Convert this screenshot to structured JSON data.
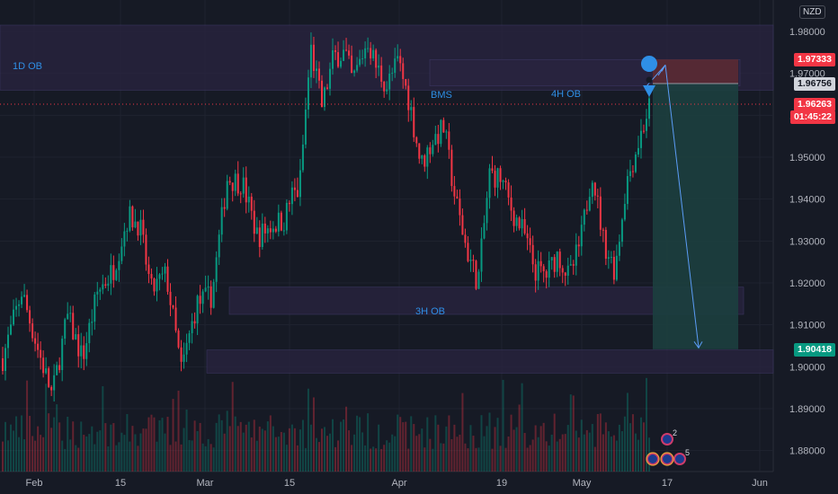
{
  "chart_data": {
    "type": "candlestick",
    "instrument_currency": "NZD",
    "y_range": [
      1.875,
      1.9875
    ],
    "y_ticks": [
      "1.98000",
      "1.97000",
      "1.96000",
      "1.95000",
      "1.94000",
      "1.93000",
      "1.92000",
      "1.91000",
      "1.90000",
      "1.89000",
      "1.88000"
    ],
    "x_ticks": [
      "Feb",
      "15",
      "Mar",
      "15",
      "Apr",
      "19",
      "May",
      "17",
      "Jun"
    ],
    "price_badges": {
      "target_top": {
        "text": "1.97333",
        "bg": "#f23645",
        "color": "#ffffff"
      },
      "entry": {
        "text": "1.96756",
        "bg": "#d1d4dc",
        "color": "#131722"
      },
      "current": {
        "text": "1.96263",
        "bg": "#f23645",
        "color": "#ffffff"
      },
      "countdown": {
        "text": "01:45:22",
        "bg": "#f23645",
        "color": "#ffffff"
      },
      "take_profit": {
        "text": "1.90418",
        "bg": "#089981",
        "color": "#ffffff"
      }
    },
    "zones": [
      {
        "label": "1D OB",
        "top": 1.9815,
        "bottom": 1.966
      },
      {
        "label": "4H OB",
        "top": 1.9733,
        "bottom": 1.967
      },
      {
        "label": "3H OB",
        "top": 1.919,
        "bottom": 1.9125
      },
      {
        "label": "",
        "top": 1.904,
        "bottom": 1.8985
      }
    ],
    "annotations": {
      "bms": "BMS"
    },
    "position": {
      "type": "short",
      "stop": 1.97333,
      "entry": 1.96756,
      "target": 1.90418
    },
    "current_price": 1.96263,
    "colors": {
      "up": "#089981",
      "down": "#f23645",
      "background": "#161a25",
      "zone": "#2a2440",
      "short_risk": "#5a2a33",
      "short_reward": "#1c3f3f",
      "accent": "#2f8fe6"
    },
    "event_markers": [
      "2",
      "5"
    ],
    "price_path": [
      [
        0,
        1.902
      ],
      [
        0.025,
        1.918
      ],
      [
        0.045,
        1.905
      ],
      [
        0.065,
        1.893
      ],
      [
        0.085,
        1.912
      ],
      [
        0.105,
        1.902
      ],
      [
        0.125,
        1.918
      ],
      [
        0.145,
        1.923
      ],
      [
        0.165,
        1.936
      ],
      [
        0.18,
        1.934
      ],
      [
        0.195,
        1.918
      ],
      [
        0.215,
        1.922
      ],
      [
        0.235,
        1.899
      ],
      [
        0.255,
        1.915
      ],
      [
        0.275,
        1.917
      ],
      [
        0.295,
        1.945
      ],
      [
        0.315,
        1.944
      ],
      [
        0.335,
        1.931
      ],
      [
        0.355,
        1.934
      ],
      [
        0.37,
        1.935
      ],
      [
        0.38,
        1.941
      ],
      [
        0.39,
        1.942
      ],
      [
        0.405,
        1.976
      ],
      [
        0.42,
        1.962
      ],
      [
        0.435,
        1.974
      ],
      [
        0.45,
        1.975
      ],
      [
        0.46,
        1.968
      ],
      [
        0.47,
        1.973
      ],
      [
        0.48,
        1.978
      ],
      [
        0.49,
        1.972
      ],
      [
        0.505,
        1.967
      ],
      [
        0.52,
        1.973
      ],
      [
        0.535,
        1.963
      ],
      [
        0.55,
        1.948
      ],
      [
        0.565,
        1.954
      ],
      [
        0.58,
        1.957
      ],
      [
        0.595,
        1.94
      ],
      [
        0.61,
        1.928
      ],
      [
        0.625,
        1.92
      ],
      [
        0.64,
        1.946
      ],
      [
        0.655,
        1.945
      ],
      [
        0.67,
        1.937
      ],
      [
        0.685,
        1.932
      ],
      [
        0.7,
        1.923
      ],
      [
        0.715,
        1.922
      ],
      [
        0.73,
        1.927
      ],
      [
        0.745,
        1.921
      ],
      [
        0.76,
        1.93
      ],
      [
        0.775,
        1.947
      ],
      [
        0.79,
        1.93
      ],
      [
        0.805,
        1.923
      ],
      [
        0.82,
        1.944
      ],
      [
        0.835,
        1.953
      ],
      [
        0.85,
        1.962
      ]
    ]
  }
}
